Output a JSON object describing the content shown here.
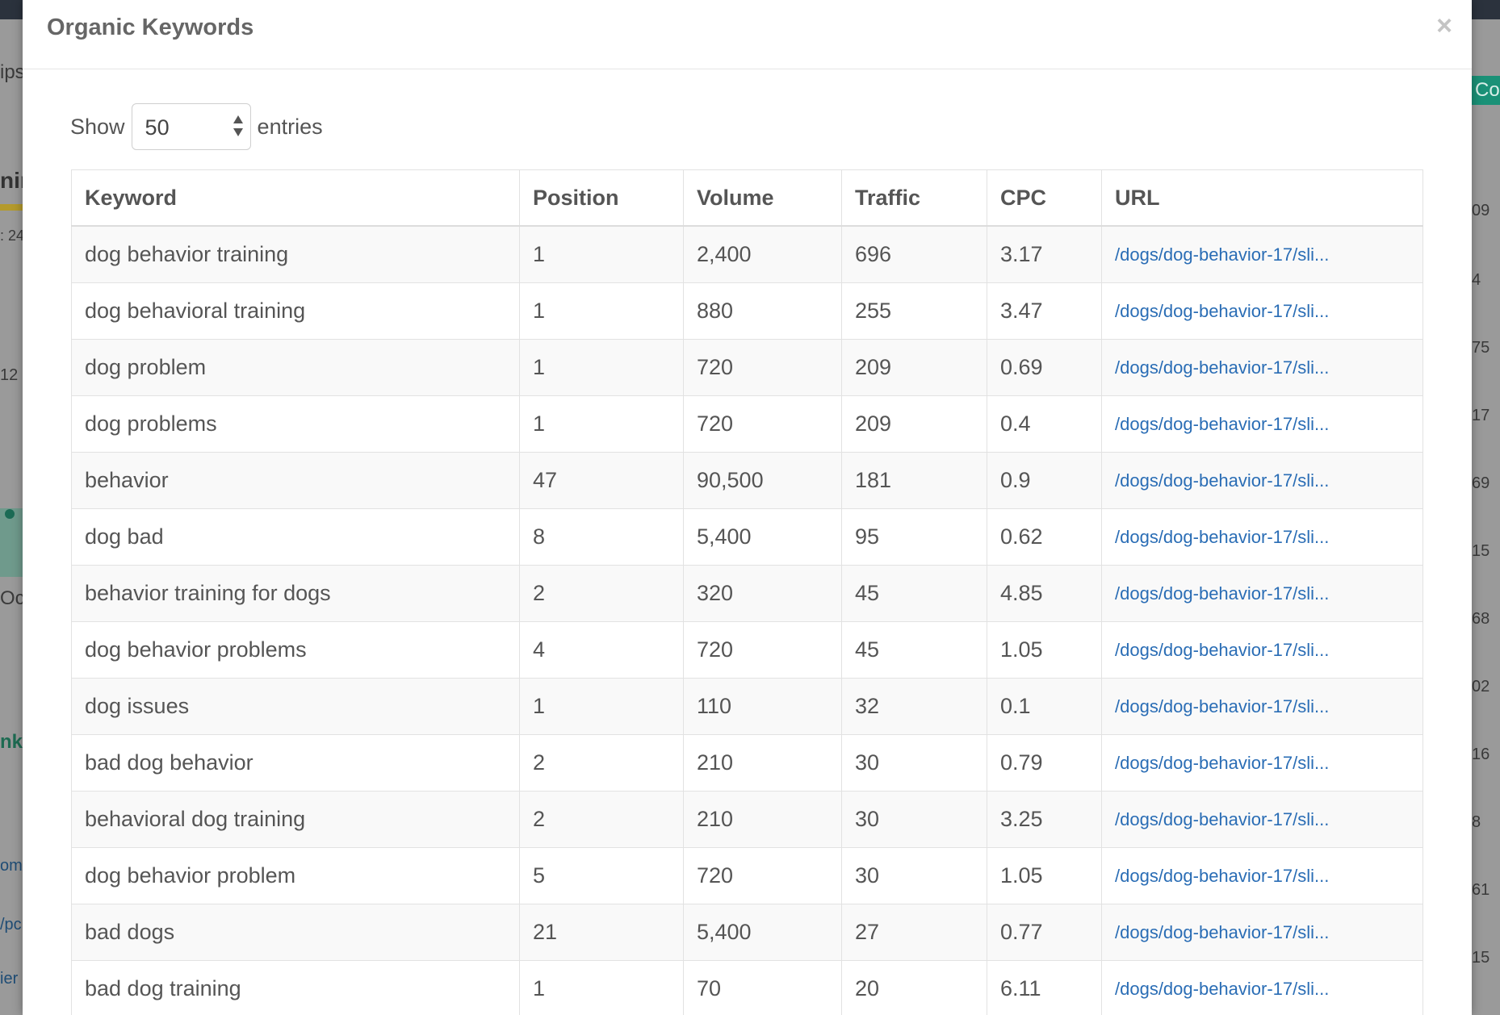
{
  "modal": {
    "title": "Organic Keywords",
    "close_label": "×"
  },
  "length_control": {
    "show_label": "Show",
    "selected": "50",
    "entries_label": "entries"
  },
  "table": {
    "columns": [
      "Keyword",
      "Position",
      "Volume",
      "Traffic",
      "CPC",
      "URL"
    ],
    "rows": [
      {
        "keyword": "dog behavior training",
        "position": "1",
        "volume": "2,400",
        "traffic": "696",
        "cpc": "3.17",
        "url": "/dogs/dog-behavior-17/sli..."
      },
      {
        "keyword": "dog behavioral training",
        "position": "1",
        "volume": "880",
        "traffic": "255",
        "cpc": "3.47",
        "url": "/dogs/dog-behavior-17/sli..."
      },
      {
        "keyword": "dog problem",
        "position": "1",
        "volume": "720",
        "traffic": "209",
        "cpc": "0.69",
        "url": "/dogs/dog-behavior-17/sli..."
      },
      {
        "keyword": "dog problems",
        "position": "1",
        "volume": "720",
        "traffic": "209",
        "cpc": "0.4",
        "url": "/dogs/dog-behavior-17/sli..."
      },
      {
        "keyword": "behavior",
        "position": "47",
        "volume": "90,500",
        "traffic": "181",
        "cpc": "0.9",
        "url": "/dogs/dog-behavior-17/sli..."
      },
      {
        "keyword": "dog bad",
        "position": "8",
        "volume": "5,400",
        "traffic": "95",
        "cpc": "0.62",
        "url": "/dogs/dog-behavior-17/sli..."
      },
      {
        "keyword": "behavior training for dogs",
        "position": "2",
        "volume": "320",
        "traffic": "45",
        "cpc": "4.85",
        "url": "/dogs/dog-behavior-17/sli..."
      },
      {
        "keyword": "dog behavior problems",
        "position": "4",
        "volume": "720",
        "traffic": "45",
        "cpc": "1.05",
        "url": "/dogs/dog-behavior-17/sli..."
      },
      {
        "keyword": "dog issues",
        "position": "1",
        "volume": "110",
        "traffic": "32",
        "cpc": "0.1",
        "url": "/dogs/dog-behavior-17/sli..."
      },
      {
        "keyword": "bad dog behavior",
        "position": "2",
        "volume": "210",
        "traffic": "30",
        "cpc": "0.79",
        "url": "/dogs/dog-behavior-17/sli..."
      },
      {
        "keyword": "behavioral dog training",
        "position": "2",
        "volume": "210",
        "traffic": "30",
        "cpc": "3.25",
        "url": "/dogs/dog-behavior-17/sli..."
      },
      {
        "keyword": "dog behavior problem",
        "position": "5",
        "volume": "720",
        "traffic": "30",
        "cpc": "1.05",
        "url": "/dogs/dog-behavior-17/sli..."
      },
      {
        "keyword": "bad dogs",
        "position": "21",
        "volume": "5,400",
        "traffic": "27",
        "cpc": "0.77",
        "url": "/dogs/dog-behavior-17/sli..."
      },
      {
        "keyword": "bad dog training",
        "position": "1",
        "volume": "70",
        "traffic": "20",
        "cpc": "6.11",
        "url": "/dogs/dog-behavior-17/sli..."
      }
    ]
  },
  "background": {
    "left_fragments": [
      "ips",
      "nin",
      ": 24",
      "12",
      "Oct",
      "nkin",
      "om/",
      "/pc",
      "ier"
    ],
    "right_fragments": [
      "09",
      "4",
      "75",
      "17",
      "69",
      "15",
      "68",
      "02",
      "16",
      "8",
      "61",
      "15"
    ],
    "right_button": "Co"
  }
}
